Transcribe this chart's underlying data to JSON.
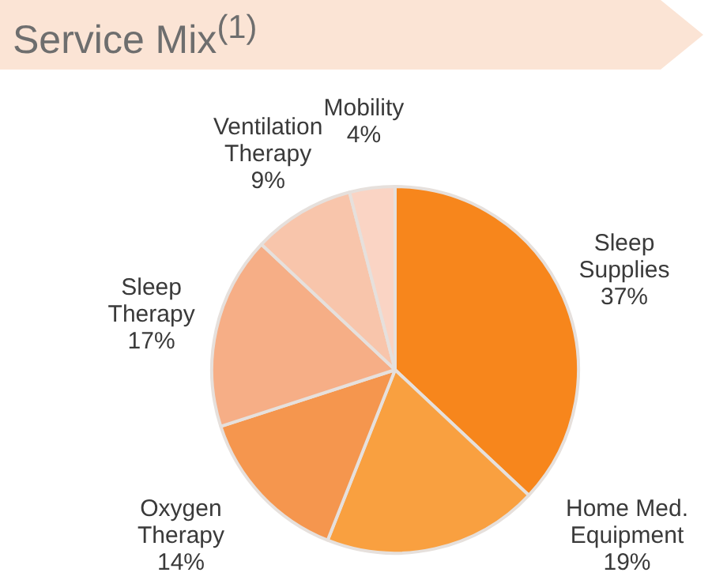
{
  "chart_data": {
    "type": "pie",
    "title": "Service Mix$^{(1)}$",
    "categories": [
      "Sleep Supplies",
      "Home Med. Equipment",
      "Oxygen Therapy",
      "Sleep Therapy",
      "Ventilation Therapy",
      "Mobility"
    ],
    "values": [
      37,
      19,
      14,
      17,
      9,
      4
    ],
    "colors": [
      "#f7861c",
      "#f9a040",
      "#f5964e",
      "#f6ae86",
      "#f8c5ab",
      "#fad4c4"
    ],
    "value_labels": [
      "37%",
      "19%",
      "14%",
      "17%",
      "9%",
      "4%"
    ]
  }
}
